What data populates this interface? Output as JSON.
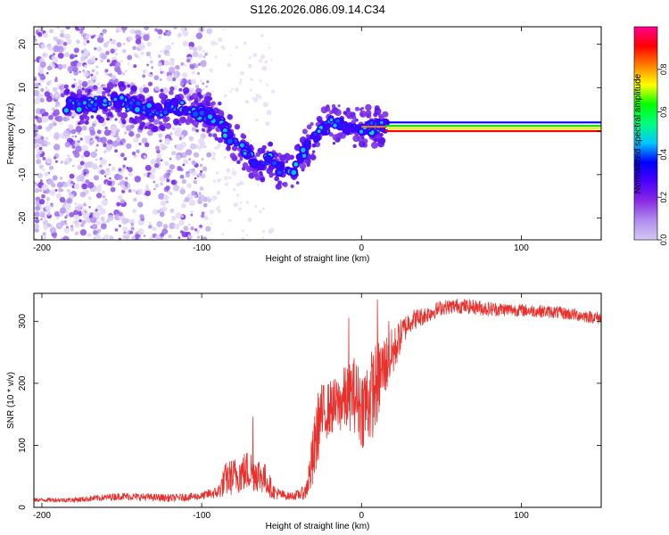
{
  "chart_data": [
    {
      "type": "heatmap",
      "title": "S126.2026.086.09.14.C34",
      "xlabel": "Height of straight line (km)",
      "ylabel": "Frequency (Hz)",
      "xlim": [
        -205,
        150
      ],
      "ylim": [
        -25,
        24
      ],
      "xticks": [
        -200,
        -100,
        0,
        100
      ],
      "xtick_labels": [
        "-200",
        "-100",
        "0",
        "100"
      ],
      "yticks": [
        20,
        10,
        0,
        -10,
        -20
      ],
      "ytick_labels": [
        "20",
        "10",
        "0",
        "-10",
        "-20"
      ],
      "grid": false,
      "ridge": {
        "x": [
          -185,
          -175,
          -160,
          -150,
          -140,
          -130,
          -120,
          -110,
          -100,
          -90,
          -85,
          -80,
          -75,
          -70,
          -65,
          -60,
          -55,
          -50,
          -45,
          -40,
          -35,
          -30,
          -25,
          -20,
          -15,
          -10,
          -5,
          0,
          5,
          10,
          15
        ],
        "y": [
          6,
          6,
          7,
          6.5,
          5.5,
          4.5,
          5.5,
          5.5,
          4,
          2.5,
          0,
          -2,
          -4,
          -6,
          -8,
          -6,
          -7.5,
          -9,
          -10,
          -8,
          -4,
          -2,
          0,
          2,
          1.5,
          1,
          0.5,
          1,
          1,
          1,
          1
        ]
      },
      "tone_bands": {
        "x_range": [
          15,
          150
        ],
        "freqs": [
          2,
          1.2,
          0.6,
          0
        ],
        "colors": [
          "#0000ff",
          "#00dd00",
          "#ffee00",
          "#ff0000"
        ]
      }
    },
    {
      "type": "colorbar",
      "label": "Normalized spectral amplitude",
      "range": [
        0,
        1
      ],
      "ticks": [
        0.0,
        0.2,
        0.4,
        0.6,
        0.8
      ],
      "tick_labels": [
        "0.0",
        "0.2",
        "0.4",
        "0.6",
        "0.8"
      ],
      "stops": [
        "#d4c8f2",
        "#b08df0",
        "#8a2be2",
        "#4b00ff",
        "#0000ff",
        "#00c8ff",
        "#00ff7f",
        "#00ff00",
        "#ffff00",
        "#ff8000",
        "#ff0000",
        "#ff0090"
      ]
    },
    {
      "type": "line",
      "xlabel": "Height of straight line (km)",
      "ylabel": "SNR (10 * v/v)",
      "xlim": [
        -205,
        150
      ],
      "ylim": [
        0,
        345
      ],
      "xticks": [
        -200,
        -100,
        0,
        100
      ],
      "xtick_labels": [
        "-200",
        "-100",
        "0",
        "100"
      ],
      "yticks": [
        0,
        100,
        200,
        300
      ],
      "ytick_labels": [
        "0",
        "100",
        "200",
        "300"
      ],
      "color": "#e8302c",
      "series": [
        {
          "name": "SNR",
          "x": [
            -205,
            -180,
            -150,
            -120,
            -100,
            -95,
            -90,
            -85,
            -80,
            -75,
            -70,
            -65,
            -60,
            -55,
            -50,
            -45,
            -40,
            -35,
            -30,
            -28,
            -26,
            -24,
            -22,
            -20,
            -15,
            -10,
            -5,
            0,
            5,
            10,
            12,
            15,
            20,
            25,
            30,
            40,
            50,
            60,
            70,
            80,
            100,
            120,
            150
          ],
          "y": [
            12,
            12,
            18,
            15,
            18,
            22,
            24,
            45,
            50,
            55,
            60,
            55,
            45,
            25,
            20,
            18,
            20,
            25,
            80,
            120,
            145,
            150,
            155,
            160,
            165,
            175,
            185,
            160,
            175,
            200,
            215,
            230,
            250,
            280,
            300,
            310,
            322,
            325,
            323,
            320,
            318,
            315,
            305
          ],
          "noise": [
            3,
            4,
            6,
            6,
            6,
            8,
            10,
            28,
            30,
            32,
            35,
            30,
            25,
            12,
            8,
            6,
            8,
            12,
            55,
            60,
            55,
            50,
            45,
            45,
            45,
            55,
            60,
            65,
            75,
            70,
            60,
            50,
            40,
            25,
            18,
            14,
            12,
            12,
            12,
            12,
            10,
            10,
            10
          ],
          "spikes": [
            {
              "x": -68,
              "y": 146
            },
            {
              "x": -8,
              "y": 305
            },
            {
              "x": 10,
              "y": 335
            },
            {
              "x": 17,
              "y": 300
            }
          ]
        }
      ]
    }
  ]
}
